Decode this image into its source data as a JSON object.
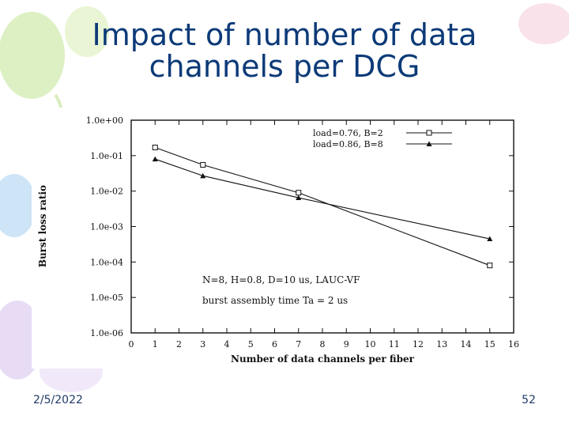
{
  "slide": {
    "title_line1": "Impact of number of data",
    "title_line2": "channels per DCG",
    "date": "2/5/2022",
    "page_number": "52"
  },
  "colors": {
    "title": "#0c3a78",
    "decor_green": "#c9e8a6",
    "decor_blue": "#a9cdf0",
    "decor_pink": "#f5c9d6",
    "decor_lavender": "#d9c9ef"
  },
  "chart_data": {
    "type": "line",
    "title": "",
    "xlabel": "Number of data channels per fiber",
    "ylabel": "Burst loss ratio",
    "x_ticks": [
      0,
      1,
      2,
      3,
      4,
      5,
      6,
      7,
      8,
      9,
      10,
      11,
      12,
      13,
      14,
      15,
      16
    ],
    "xlim": [
      0,
      16
    ],
    "y_scale": "log",
    "ylim": [
      1e-06,
      1
    ],
    "y_tick_labels": [
      "1.0e+00",
      "1.0e-01",
      "1.0e-02",
      "1.0e-03",
      "1.0e-04",
      "1.0e-05",
      "1.0e-06"
    ],
    "y_tick_values": [
      1,
      0.1,
      0.01,
      0.001,
      0.0001,
      1e-05,
      1e-06
    ],
    "legend_position": "top-right",
    "series": [
      {
        "name": "load=0.76, B=2",
        "marker": "square",
        "x": [
          1,
          3,
          7,
          15
        ],
        "y": [
          0.17,
          0.055,
          0.009,
          8e-05
        ]
      },
      {
        "name": "load=0.86, B=8",
        "marker": "triangle",
        "x": [
          1,
          3,
          7,
          15
        ],
        "y": [
          0.08,
          0.027,
          0.0065,
          0.00045
        ]
      }
    ],
    "annotations": [
      "N=8, H=0.8, D=10 us, LAUC-VF",
      "burst assembly time Ta = 2 us"
    ]
  }
}
